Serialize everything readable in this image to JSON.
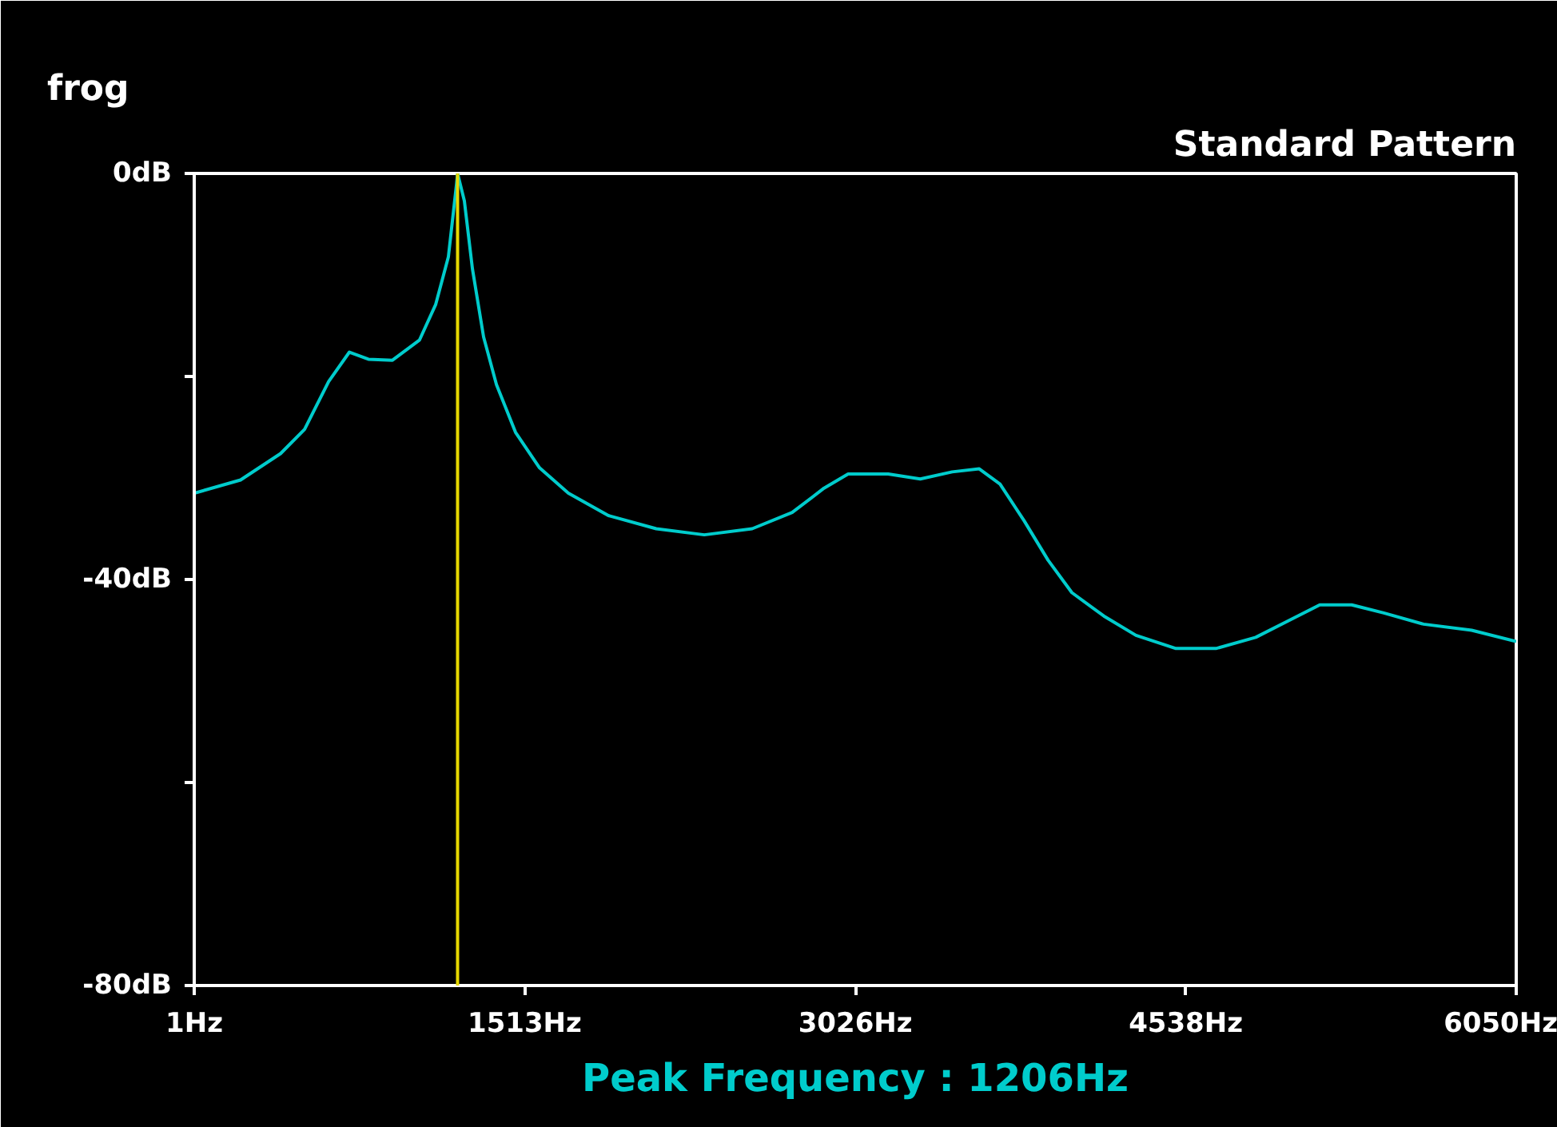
{
  "chart_data": {
    "type": "line",
    "title": "frog",
    "subtitle": "Standard Pattern",
    "annotations": [
      "Peak Frequency : 1206Hz"
    ],
    "x": [
      1,
      213,
      396,
      506,
      616,
      711,
      798,
      908,
      1032,
      1106,
      1164,
      1201,
      1206,
      1237,
      1274,
      1325,
      1384,
      1471,
      1581,
      1713,
      1896,
      2115,
      2335,
      2554,
      2737,
      2883,
      2993,
      3176,
      3323,
      3469,
      3593,
      3688,
      3798,
      3908,
      4017,
      4163,
      4310,
      4493,
      4676,
      4858,
      5005,
      5151,
      5297,
      5444,
      5626,
      5846,
      6050
    ],
    "series": [
      {
        "color": "#00cccc",
        "values": [
          -31.5,
          -30.2,
          -27.6,
          -25.2,
          -20.5,
          -17.6,
          -18.3,
          -18.4,
          -16.4,
          -12.9,
          -8.2,
          -1.1,
          0,
          -2.7,
          -9.4,
          -16.1,
          -20.8,
          -25.5,
          -29,
          -31.5,
          -33.7,
          -35,
          -35.6,
          -35,
          -33.4,
          -31,
          -29.6,
          -29.6,
          -30.1,
          -29.4,
          -29.1,
          -30.6,
          -34.2,
          -38.1,
          -41.3,
          -43.6,
          -45.5,
          -46.8,
          -46.8,
          -45.7,
          -44.1,
          -42.5,
          -42.5,
          -43.3,
          -44.4,
          -45,
          -46.1
        ]
      }
    ],
    "xlim": [
      1,
      6050
    ],
    "ylim": [
      -80,
      0
    ],
    "xticks": [
      {
        "value": 1,
        "label": "1Hz"
      },
      {
        "value": 1513,
        "label": "1513Hz"
      },
      {
        "value": 3026,
        "label": "3026Hz"
      },
      {
        "value": 4538,
        "label": "4538Hz"
      },
      {
        "value": 6050,
        "label": "6050Hz"
      }
    ],
    "yticks": [
      {
        "value": 0,
        "label": "0dB"
      },
      {
        "value": -20,
        "label": null
      },
      {
        "value": -40,
        "label": "-40dB"
      },
      {
        "value": -60,
        "label": null
      },
      {
        "value": -80,
        "label": "-80dB"
      }
    ],
    "ref_lines": [
      {
        "axis": "x",
        "value": 1206,
        "color": "#e6d800"
      }
    ],
    "grid": false,
    "marker": "none",
    "line_style": "solid"
  }
}
